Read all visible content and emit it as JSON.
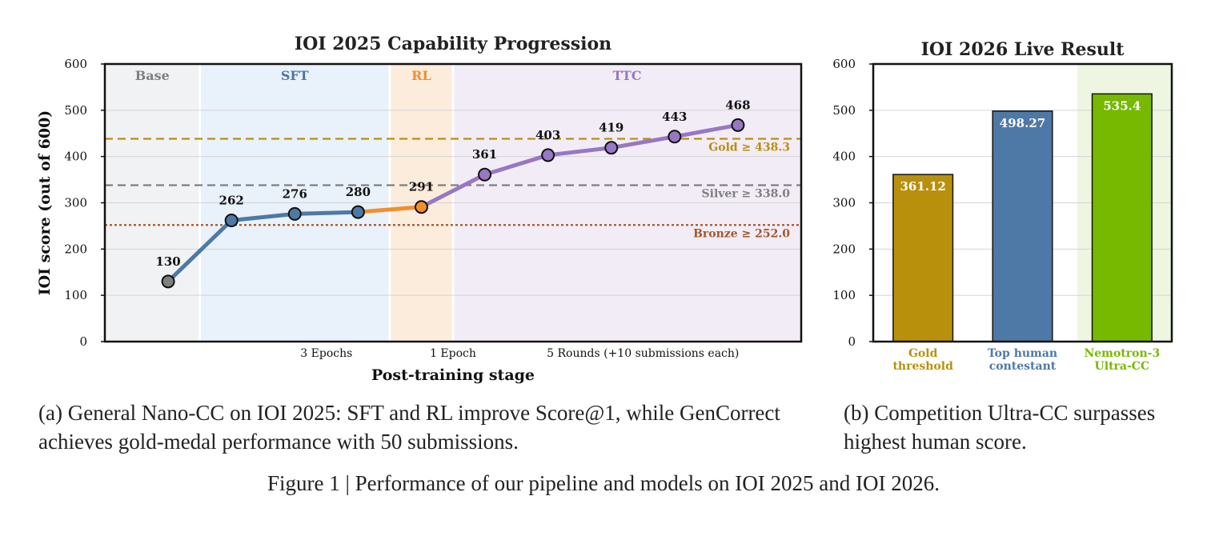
{
  "figure_caption": "Figure 1 | Performance of our pipeline and models on IOI 2025 and IOI 2026.",
  "caption_a": "(a) General Nano-CC on IOI 2025: SFT and RL improve Score@1, while GenCorrect achieves gold-medal performance with 50 submissions.",
  "caption_b": "(b) Competition Ultra-CC surpasses highest human score.",
  "chart_data": [
    {
      "type": "line",
      "title": "IOI 2025 Capability Progression",
      "xlabel": "Post-training stage",
      "ylabel": "IOI score (out of 600)",
      "ylim": [
        0,
        600
      ],
      "yticks": [
        "0",
        "100",
        "200",
        "300",
        "400",
        "500",
        "600"
      ],
      "grid": true,
      "stages": [
        {
          "name": "Base",
          "x_from": 0,
          "x_to": 1,
          "color": "#7f7f7f",
          "bg": "#f1f2f3"
        },
        {
          "name": "SFT",
          "x_from": 1,
          "x_to": 4,
          "color": "#4a77a8",
          "bg": "#e9f1fa"
        },
        {
          "name": "RL",
          "x_from": 4,
          "x_to": 5,
          "color": "#f28e2b",
          "bg": "#fcecdc"
        },
        {
          "name": "TTC",
          "x_from": 5,
          "x_to": 10,
          "color": "#9778c2",
          "bg": "#f2ecf7"
        }
      ],
      "xtick_labels": [
        {
          "label": "3 Epochs",
          "x": 2.5
        },
        {
          "label": "1 Epoch",
          "x": 4.5
        },
        {
          "label": "5 Rounds (+10 submissions each)",
          "x": 7.5
        }
      ],
      "series": [
        {
          "stage": "SFT",
          "x": [
            0,
            1,
            2,
            3
          ],
          "values": [
            130,
            262,
            276,
            280
          ],
          "color": "#4e79a7"
        },
        {
          "stage": "RL",
          "x": [
            3,
            4
          ],
          "values": [
            280,
            291
          ],
          "color": "#f28e2b"
        },
        {
          "stage": "TTC",
          "x": [
            4,
            5,
            6,
            7,
            8,
            9
          ],
          "values": [
            291,
            361,
            403,
            419,
            443,
            468
          ],
          "color": "#9778c2"
        }
      ],
      "points": [
        {
          "x": 0,
          "value": 130,
          "label": "130",
          "color": "#7f7f7f"
        },
        {
          "x": 1,
          "value": 262,
          "label": "262",
          "color": "#4e79a7"
        },
        {
          "x": 2,
          "value": 276,
          "label": "276",
          "color": "#4e79a7"
        },
        {
          "x": 3,
          "value": 280,
          "label": "280",
          "color": "#4e79a7"
        },
        {
          "x": 4,
          "value": 291,
          "label": "291",
          "color": "#f28e2b"
        },
        {
          "x": 5,
          "value": 361,
          "label": "361",
          "color": "#9778c2"
        },
        {
          "x": 6,
          "value": 403,
          "label": "403",
          "color": "#9778c2"
        },
        {
          "x": 7,
          "value": 419,
          "label": "419",
          "color": "#9778c2"
        },
        {
          "x": 8,
          "value": 443,
          "label": "443",
          "color": "#9778c2"
        },
        {
          "x": 9,
          "value": 468,
          "label": "468",
          "color": "#9778c2"
        }
      ],
      "thresholds": [
        {
          "name": "Gold",
          "value": 438.3,
          "label": "Gold ≥ 438.3",
          "color": "#b8900c",
          "style": "dashed"
        },
        {
          "name": "Silver",
          "value": 338.0,
          "label": "Silver ≥ 338.0",
          "color": "#7f7f7f",
          "style": "dashed"
        },
        {
          "name": "Bronze",
          "value": 252.0,
          "label": "Bronze ≥ 252.0",
          "color": "#a65628",
          "style": "dotted"
        }
      ]
    },
    {
      "type": "bar",
      "title": "IOI 2026 Live Result",
      "ylim": [
        0,
        600
      ],
      "yticks": [
        "0",
        "100",
        "200",
        "300",
        "400",
        "500",
        "600"
      ],
      "grid": true,
      "bars": [
        {
          "category_lines": [
            "Gold",
            "threshold"
          ],
          "value": 361.12,
          "label": "361.12",
          "color": "#b8900c"
        },
        {
          "category_lines": [
            "Top human",
            "contestant"
          ],
          "value": 498.27,
          "label": "498.27",
          "color": "#4e79a7"
        },
        {
          "category_lines": [
            "Nemotron-3",
            "Ultra-CC"
          ],
          "value": 535.4,
          "label": "535.4",
          "color": "#76b900",
          "highlight_bg": "#eef6e1"
        }
      ]
    }
  ]
}
